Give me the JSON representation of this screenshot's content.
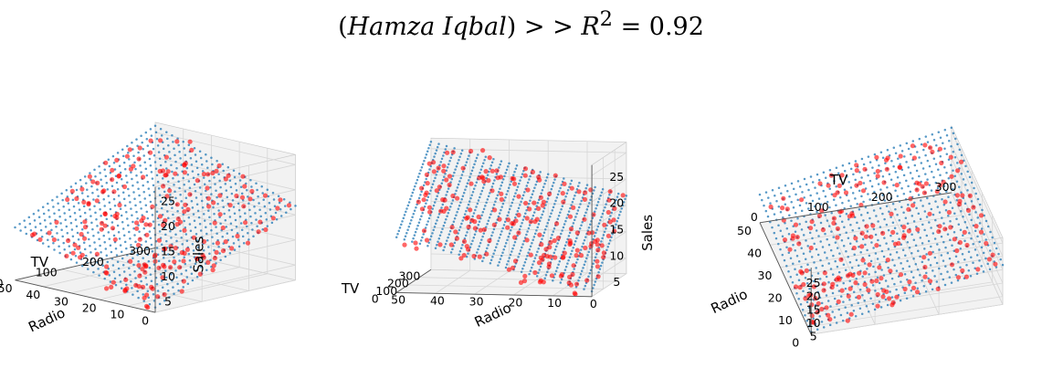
{
  "figure": {
    "title": "(Hamza Iqbal) > > R² = 0.92",
    "title_parts": {
      "name": "Hamza Iqbal",
      "sep": " > > ",
      "r": "R",
      "sup": "2",
      "eq": " = 0.92"
    }
  },
  "colors": {
    "plane": "#1f77b4",
    "points": "#ff0000",
    "pane": "#f2f2f2",
    "grid": "#d6d6d6"
  },
  "chart_data": [
    {
      "type": "scatter",
      "subtype": "3d-scatter-with-regression-plane",
      "xlabel": "TV",
      "ylabel": "Radio",
      "zlabel": "Sales",
      "xticks": [
        "300",
        "200",
        "100",
        "0"
      ],
      "yticks": [
        "50",
        "40",
        "30",
        "20",
        "10",
        "0"
      ],
      "zticks": [
        "5",
        "10",
        "15",
        "20",
        "25"
      ],
      "xlim": [
        0,
        300
      ],
      "ylim": [
        0,
        50
      ],
      "zlim": [
        2,
        27
      ],
      "view": {
        "elev": 20,
        "azim": 135
      },
      "grid": true,
      "series": [
        {
          "type": "surface"
        },
        {
          "type": "scatter"
        }
      ]
    },
    {
      "type": "scatter",
      "subtype": "3d-scatter-with-regression-plane",
      "xlabel": "TV",
      "ylabel": "Radio",
      "zlabel": "Sales",
      "xticks": [
        "300",
        "200",
        "100",
        "0"
      ],
      "yticks": [
        "50",
        "40",
        "30",
        "20",
        "10",
        "0"
      ],
      "zticks": [
        "5",
        "10",
        "15",
        "20",
        "25"
      ],
      "xlim": [
        0,
        300
      ],
      "ylim": [
        0,
        50
      ],
      "zlim": [
        2,
        27
      ],
      "view": {
        "elev": 10,
        "azim": 100
      },
      "grid": true,
      "series": [
        {
          "type": "surface"
        },
        {
          "type": "scatter"
        }
      ]
    },
    {
      "type": "scatter",
      "subtype": "3d-scatter-with-regression-plane",
      "xlabel": "TV",
      "ylabel": "Radio",
      "zlabel": "",
      "xticks": [
        "300",
        "200",
        "100",
        "0"
      ],
      "yticks": [
        "50",
        "40",
        "30",
        "20",
        "10",
        "0"
      ],
      "zticks": [
        "5",
        "10",
        "15",
        "20",
        "25"
      ],
      "xlim": [
        0,
        300
      ],
      "ylim": [
        0,
        50
      ],
      "zlim": [
        2,
        27
      ],
      "view": {
        "elev": 60,
        "azim": 165
      },
      "grid": true,
      "series": [
        {
          "type": "surface"
        },
        {
          "type": "scatter"
        }
      ]
    }
  ]
}
